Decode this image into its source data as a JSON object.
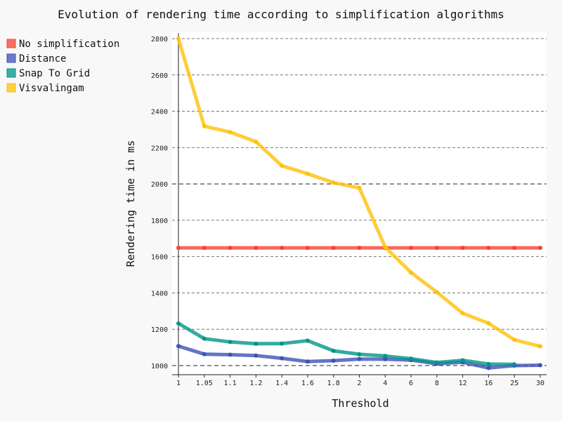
{
  "chart_data": {
    "type": "line",
    "title": "Evolution of rendering time according to simplification algorithms",
    "xlabel": "Threshold",
    "ylabel": "Rendering time in ms",
    "x": [
      "1",
      "1.05",
      "1.1",
      "1.2",
      "1.4",
      "1.6",
      "1.8",
      "2",
      "4",
      "6",
      "8",
      "12",
      "16",
      "25",
      "30"
    ],
    "yticks": [
      1000,
      1200,
      1400,
      1600,
      1800,
      2000,
      2200,
      2400,
      2600,
      2800
    ],
    "ylim": [
      950,
      2830
    ],
    "grid": true,
    "legend_position": "top-left",
    "series": [
      {
        "name": "No simplification",
        "color": "#f44336",
        "values": [
          1648,
          1648,
          1648,
          1648,
          1648,
          1648,
          1648,
          1648,
          1648,
          1648,
          1648,
          1648,
          1648,
          1648,
          1648
        ]
      },
      {
        "name": "Distance",
        "color": "#3f51b5",
        "values": [
          1107,
          1063,
          1060,
          1055,
          1040,
          1022,
          1027,
          1036,
          1035,
          1030,
          1010,
          1018,
          987,
          1000,
          1002
        ]
      },
      {
        "name": "Snap To Grid",
        "color": "#009688",
        "values": [
          1232,
          1148,
          1130,
          1120,
          1121,
          1137,
          1081,
          1062,
          1053,
          1038,
          1017,
          1029,
          1008,
          1007,
          null
        ]
      },
      {
        "name": "Visvalingam",
        "color": "#ffc107",
        "values": [
          2800,
          2318,
          2285,
          2232,
          2100,
          2056,
          2007,
          1978,
          1652,
          1512,
          1404,
          1288,
          1233,
          1142,
          1106
        ]
      }
    ]
  }
}
